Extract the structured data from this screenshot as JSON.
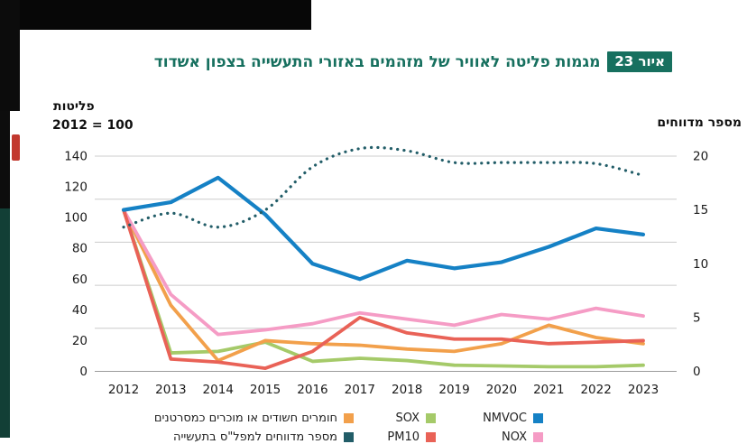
{
  "title": {
    "badge": "איור 23",
    "text": "מגמות פליטה לאוויר של מזהמים באזורי התעשייה בצפון אשדוד",
    "color": "#17705f"
  },
  "axes": {
    "left": {
      "title": "פליטות",
      "subtitle": "2012 = 100",
      "ticks": [
        140,
        120,
        100,
        80,
        60,
        40,
        20,
        0
      ]
    },
    "right": {
      "title": "מספר מדווחים",
      "ticks": [
        20,
        15,
        10,
        5,
        0
      ]
    }
  },
  "legend": {
    "row1": [
      {
        "key": "nmvoc",
        "label": "NMVOC",
        "color": "#1581c5"
      },
      {
        "key": "sox",
        "label": "SOX",
        "color": "#a5ca69"
      },
      {
        "key": "carc",
        "label": "חומרים חשודים או מוכרים כמסרטנים",
        "color": "#f2a04b"
      }
    ],
    "row2": [
      {
        "key": "nox",
        "label": "NOX",
        "color": "#f59cc5"
      },
      {
        "key": "pm10",
        "label": "PM10",
        "color": "#e96257"
      },
      {
        "key": "rep",
        "label": "מספר מדווחים למפל\"ס בתעשייה",
        "color": "#225d68"
      }
    ]
  },
  "chart_data": {
    "type": "line",
    "x": [
      2012,
      2013,
      2014,
      2015,
      2016,
      2017,
      2018,
      2019,
      2020,
      2021,
      2022,
      2023
    ],
    "left_axis": {
      "label": "פליטות (2012 = 100)",
      "range": [
        0,
        140
      ],
      "ticks": [
        140,
        120,
        100,
        80,
        60,
        40,
        20,
        0
      ]
    },
    "right_axis": {
      "label": "מספר מדווחים",
      "range": [
        0,
        20
      ],
      "ticks": [
        20,
        15,
        10,
        5,
        0
      ]
    },
    "grid": {
      "horizontal_lines": 6
    },
    "legend_position": "bottom",
    "series": [
      {
        "name": "SOX",
        "axis": "left",
        "style": "solid",
        "color": "#a5ca69",
        "values": [
          105,
          12,
          13,
          19,
          6.5,
          8.5,
          7,
          4,
          3.5,
          3,
          3,
          4
        ]
      },
      {
        "name": "חומרים חשודים או מוכרים כמסרטנים",
        "axis": "left",
        "style": "solid",
        "color": "#f2a04b",
        "values": [
          105,
          43,
          7,
          20,
          18,
          17,
          14.5,
          13,
          18,
          30,
          22,
          18
        ]
      },
      {
        "name": "NOX",
        "axis": "left",
        "style": "solid",
        "color": "#f59cc5",
        "values": [
          105,
          50,
          24,
          27,
          31,
          38,
          34,
          30,
          37,
          34,
          41,
          36
        ]
      },
      {
        "name": "PM10",
        "axis": "left",
        "style": "solid",
        "color": "#e96257",
        "values": [
          105,
          8,
          6,
          2,
          13,
          35,
          25,
          21,
          21,
          18,
          19,
          20
        ]
      },
      {
        "name": "NMVOC",
        "axis": "left",
        "style": "solid",
        "color": "#1581c5",
        "values": [
          105,
          110,
          126,
          102,
          70,
          60,
          72,
          67,
          71,
          81,
          93,
          89
        ]
      },
      {
        "name": "מספר מדווחים",
        "axis": "right",
        "style": "dotted",
        "color": "#225d68",
        "values": [
          13.4,
          14.7,
          13.4,
          15,
          19,
          20.7,
          20.5,
          19.4,
          19.4,
          19.4,
          19.3,
          18.2
        ]
      }
    ]
  }
}
